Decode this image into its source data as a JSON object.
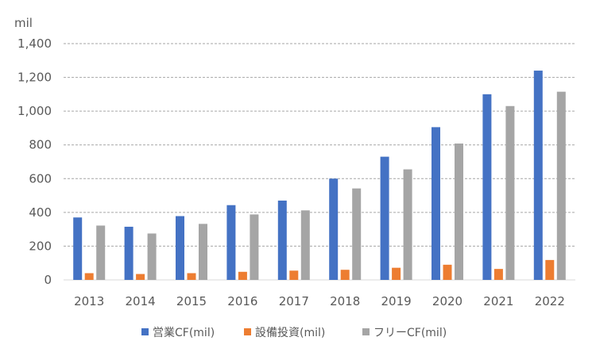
{
  "chart_data": {
    "type": "bar",
    "ylabel": "mil",
    "categories": [
      "2013",
      "2014",
      "2015",
      "2016",
      "2017",
      "2018",
      "2019",
      "2020",
      "2021",
      "2022"
    ],
    "ylim": [
      0,
      1400
    ],
    "yticks": [
      0,
      200,
      400,
      600,
      800,
      1000,
      1200,
      1400
    ],
    "ytick_labels": [
      "0",
      "200",
      "400",
      "600",
      "800",
      "1,000",
      "1,200",
      "1,400"
    ],
    "grid": true,
    "legend_position": "bottom",
    "series": [
      {
        "name": "営業CF(mil)",
        "color": "#4472C4",
        "values": [
          370,
          315,
          378,
          443,
          470,
          600,
          730,
          905,
          1100,
          1240
        ]
      },
      {
        "name": "設備投資(mil)",
        "color": "#ED7D31",
        "values": [
          40,
          35,
          40,
          48,
          55,
          60,
          72,
          90,
          65,
          118
        ]
      },
      {
        "name": "フリーCF(mil)",
        "color": "#A5A5A5",
        "values": [
          322,
          275,
          332,
          388,
          412,
          542,
          655,
          808,
          1030,
          1115
        ]
      }
    ]
  }
}
